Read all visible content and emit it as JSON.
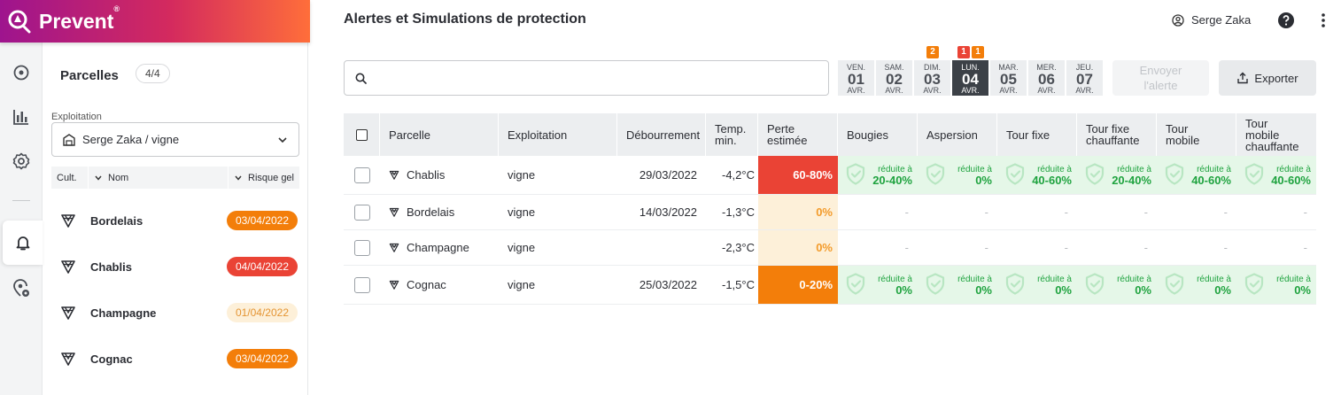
{
  "app": {
    "brand": "Prevent",
    "brand_mark": "®",
    "accent": "#d42a5e"
  },
  "user": {
    "name": "Serge Zaka"
  },
  "rail": {
    "items": [
      "location-icon",
      "bar-chart-icon",
      "settings-icon",
      "bell-icon",
      "location-settings-icon"
    ],
    "active": "bell-icon"
  },
  "sidebar": {
    "title": "Parcelles",
    "count": "4/4",
    "exploitation_label": "Exploitation",
    "exploitation_value": "Serge Zaka / vigne",
    "sort": {
      "cult": "Cult.",
      "nom": "Nom",
      "risque": "Risque gel"
    },
    "items": [
      {
        "name": "Bordelais",
        "date": "03/04/2022",
        "status": "orange"
      },
      {
        "name": "Chablis",
        "date": "04/04/2022",
        "status": "red"
      },
      {
        "name": "Champagne",
        "date": "01/04/2022",
        "status": "pale"
      },
      {
        "name": "Cognac",
        "date": "03/04/2022",
        "status": "orange"
      }
    ]
  },
  "main": {
    "title": "Alertes et Simulations de protection",
    "search": {
      "placeholder": ""
    },
    "days": [
      {
        "dn": "VEN.",
        "dd": "01",
        "dm": "AVR."
      },
      {
        "dn": "SAM.",
        "dd": "02",
        "dm": "AVR."
      },
      {
        "dn": "DIM.",
        "dd": "03",
        "dm": "AVR."
      },
      {
        "dn": "LUN.",
        "dd": "04",
        "dm": "AVR."
      },
      {
        "dn": "MAR.",
        "dd": "05",
        "dm": "AVR."
      },
      {
        "dn": "MER.",
        "dd": "06",
        "dm": "AVR."
      },
      {
        "dn": "JEU.",
        "dd": "07",
        "dm": "AVR."
      }
    ],
    "active_day": 3,
    "counters": [
      {
        "day": 2,
        "value": "2",
        "color": "#f37e0a"
      },
      {
        "day": 3,
        "value": "1",
        "color": "#ea4335"
      },
      {
        "day": 3,
        "value": "1",
        "color": "#f37e0a"
      }
    ],
    "send_label_1": "Envoyer",
    "send_label_2": "l'alerte",
    "export_label": "Exporter"
  },
  "table": {
    "headers": {
      "parcelle": "Parcelle",
      "exploitation": "Exploitation",
      "debourrement": "Débourrement",
      "temp1": "Temp.",
      "temp2": "min.",
      "perte1": "Perte",
      "perte2": "estimée",
      "bougies": "Bougies",
      "aspersion": "Aspersion",
      "tour_fixe": "Tour fixe",
      "tour_fixe_ch1": "Tour fixe",
      "tour_fixe_ch2": "chauffante",
      "tour_mobile1": "Tour",
      "tour_mobile2": "mobile",
      "tour_mobile_ch1": "Tour",
      "tour_mobile_ch2": "mobile",
      "tour_mobile_ch3": "chauffante"
    },
    "reduced_label": "réduite à",
    "dash": "-",
    "rows": [
      {
        "parcelle": "Chablis",
        "exploitation": "vigne",
        "debourrement": "29/03/2022",
        "temp": "-4,2°C",
        "perte": "60-80%",
        "level": "red",
        "prot": [
          "20-40%",
          "0%",
          "40-60%",
          "20-40%",
          "40-60%",
          "40-60%"
        ]
      },
      {
        "parcelle": "Bordelais",
        "exploitation": "vigne",
        "debourrement": "14/03/2022",
        "temp": "-1,3°C",
        "perte": "0%",
        "level": "pale",
        "prot": []
      },
      {
        "parcelle": "Champagne",
        "exploitation": "vigne",
        "debourrement": "",
        "temp": "-2,3°C",
        "perte": "0%",
        "level": "pale",
        "prot": []
      },
      {
        "parcelle": "Cognac",
        "exploitation": "vigne",
        "debourrement": "25/03/2022",
        "temp": "-1,5°C",
        "perte": "0-20%",
        "level": "orange",
        "prot": [
          "0%",
          "0%",
          "0%",
          "0%",
          "0%",
          "0%"
        ]
      }
    ]
  }
}
